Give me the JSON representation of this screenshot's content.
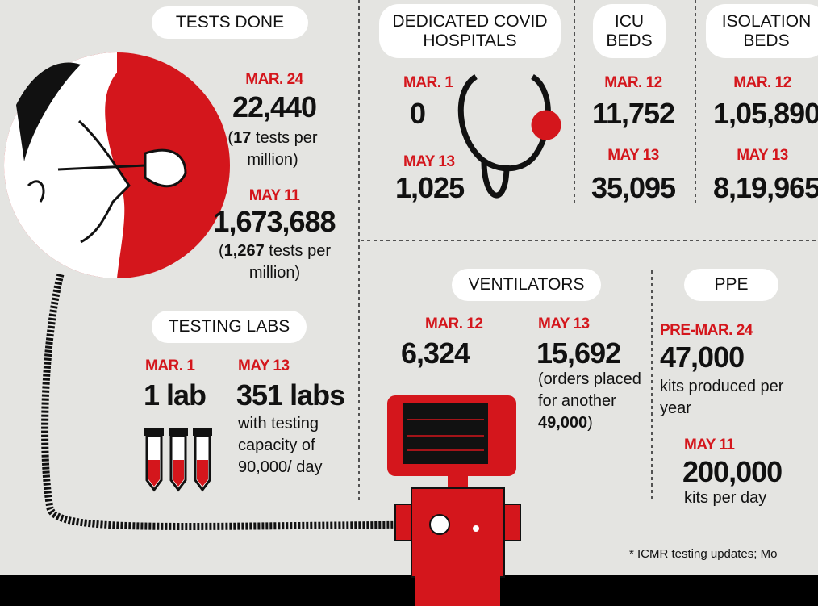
{
  "tests_done": {
    "label": "TESTS DONE",
    "entries": [
      {
        "date": "MAR. 24",
        "value": "22,440",
        "note": [
          "(",
          "17",
          " tests per million)"
        ]
      },
      {
        "date": "MAY 11",
        "value": "1,673,688",
        "note": [
          "(",
          "1,267",
          " tests per million)"
        ]
      }
    ]
  },
  "testing_labs": {
    "label": "TESTING LABS",
    "entries": [
      {
        "date": "MAR. 1",
        "value": "1 lab"
      },
      {
        "date": "MAY 13",
        "value": "351 labs",
        "note": "with testing capacity of 90,000/ day"
      }
    ]
  },
  "hospitals": {
    "label": "DEDICATED COVID HOSPITALS",
    "entries": [
      {
        "date": "MAR. 1",
        "value": "0"
      },
      {
        "date": "MAY 13",
        "value": "1,025"
      }
    ]
  },
  "icu_beds": {
    "label": "ICU BEDS",
    "entries": [
      {
        "date": "MAR. 12",
        "value": "11,752"
      },
      {
        "date": "MAY 13",
        "value": "35,095"
      }
    ]
  },
  "isolation_beds": {
    "label": "ISOLATION BEDS",
    "entries": [
      {
        "date": "MAR. 12",
        "value": "1,05,890"
      },
      {
        "date": "MAY 13",
        "value": "8,19,965"
      }
    ]
  },
  "ventilators": {
    "label": "VENTILATORS",
    "entries": [
      {
        "date": "MAR. 12",
        "value": "6,324"
      },
      {
        "date": "MAY 13",
        "value": "15,692",
        "note": [
          "(orders placed for another ",
          "49,000",
          ")"
        ]
      }
    ]
  },
  "ppe": {
    "label": "PPE",
    "entries": [
      {
        "date": "PRE-MAR. 24",
        "value": "47,000",
        "note": "kits produced per year"
      },
      {
        "date": "MAY 11",
        "value": "200,000",
        "note": "kits per day"
      }
    ]
  },
  "footnote": "* ICMR testing updates; Mo"
}
